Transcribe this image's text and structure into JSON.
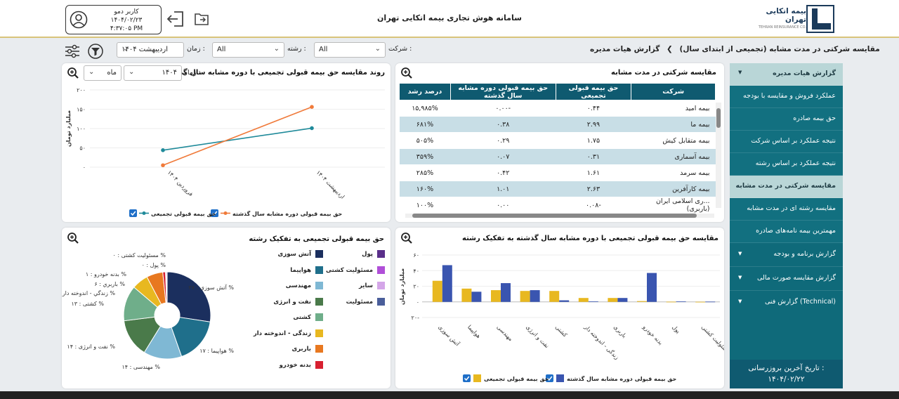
{
  "header": {
    "title": "سامانه هوش تجاری بیمه اتکایی تهران",
    "logo_name": "بیمه اتکایی تهران",
    "logo_sub": "TEHRAN REINSURANCE CO.",
    "user_name": "کاربر دمو",
    "user_date": "۱۴۰۴/۰۲/۲۳",
    "user_time": "۴:۳۷:۰۵ PM"
  },
  "filters": {
    "breadcrumb_root": "گزارش هیات مدیره",
    "breadcrumb_current": "مقایسه شرکتی در مدت مشابه (تجمیعی از ابتدای سال)",
    "company_label": "شرکت :",
    "company_value": "All",
    "field_label": "رشته :",
    "field_value": "All",
    "time_label": "زمان :",
    "month_value": "اردیبهشت",
    "year_value": "۱۴۰۴"
  },
  "sidebar": {
    "items": [
      {
        "label": "گزارش هیات مدیره"
      },
      {
        "label": "عملکرد فروش و مقایسه با بودجه"
      },
      {
        "label": "حق بیمه صادره"
      },
      {
        "label": "نتیجه عملکرد بر اساس شرکت"
      },
      {
        "label": "نتیجه عملکرد بر اساس رشته"
      },
      {
        "label": "مقایسه شرکتی در مدت مشابه"
      },
      {
        "label": "مقایسه رشته ای در مدت مشابه"
      },
      {
        "label": "مهمترین بیمه نامه‌های صادره"
      },
      {
        "label": "گزارش برنامه و بودجه"
      },
      {
        "label": "گزارش مقایسه صورت مالی"
      },
      {
        "label": "گزارش فنی (Technical)"
      }
    ],
    "update_label": "تاریخ آخرین بروزرسانی :",
    "update_date": "۱۴۰۴/۰۲/۲۲"
  },
  "table_card": {
    "title": "مقایسه شرکتی در مدت مشابه",
    "columns": [
      "شرکت",
      "حق بیمه قبولی تجمیعی",
      "حق بیمه قبولی دوره مشابه سال گذشته",
      "درصد رشد"
    ],
    "rows": [
      [
        "بیمه امید",
        "۰.۴۴",
        "-۰.۰۰",
        "۱۵,۹۸۵%"
      ],
      [
        "بیمه ما",
        "۲.۹۹",
        "۰.۳۸",
        "۶۸۱%"
      ],
      [
        "بیمه متقابل کیش",
        "۱.۷۵",
        "۰.۲۹",
        "۵۰۵%"
      ],
      [
        "بیمه آسماری",
        "۰.۳۱",
        "۰.۰۷",
        "۳۵۹%"
      ],
      [
        "بیمه سرمد",
        "۱.۶۱",
        "۰.۴۲",
        "۲۸۵%"
      ],
      [
        "بیمه کارآفرین",
        "۲.۶۳",
        "۱.۰۱",
        "۱۶۰%"
      ],
      [
        "...ری اسلامی ایران (باربری)",
        "-۰.۰۸",
        "۰.۰۰",
        "۱۰۰%"
      ]
    ]
  },
  "line_card": {
    "title": "روند مقایسه حق بیمه قبولی تجمیعی با دوره مشابه سال گذشته",
    "time_label": "زمان :",
    "year_value": "۱۴۰۴",
    "period_value": "ماه"
  },
  "pie_card": {
    "title": "حق بیمه قبولی تجمیعی به تفکیک رشته",
    "legend": [
      {
        "label": "آتش سوزی",
        "color": "#1b2f5e"
      },
      {
        "label": "پول",
        "color": "#5a2f8a"
      },
      {
        "label": "هواپیما",
        "color": "#1f6f8b"
      },
      {
        "label": "مسئولیت کشتی",
        "color": "#b04fd8"
      },
      {
        "label": "مهندسی",
        "color": "#7fb8d4"
      },
      {
        "label": "سایر",
        "color": "#d4a6e8"
      },
      {
        "label": "نفت و انرژی",
        "color": "#4a7a4a"
      },
      {
        "label": "مسئولیت",
        "color": "#4a5e9a"
      },
      {
        "label": "کشتی",
        "color": "#6fae8a"
      },
      {
        "label": "زندگی - اندوخته دار",
        "color": "#e8b820"
      },
      {
        "label": "باربری",
        "color": "#e87820"
      },
      {
        "label": "بدنه خودرو",
        "color": "#d82030"
      }
    ],
    "labels": [
      "آتش سوزی : ۲۷ %",
      "هواپیما : ۱۷ %",
      "مهندسی : ۱۴ %",
      "نفت و انرژی : ۱۴ %",
      "کشتی : ۱۳ %",
      "زندگي - اندوخته دار : ۶ %",
      "باربري : ۶ %",
      "بدنه خودرو : ۱ %",
      "پول : ۰ %",
      "مسئولیت کشتی : ۰ %"
    ]
  },
  "bar_card": {
    "title": "مقایسه حق بیمه قبولی تجمیعی با دوره مشابه سال گذشته به تفکیک رشته"
  },
  "chart_data": [
    {
      "type": "line",
      "title": "روند مقایسه حق بیمه قبولی تجمیعی با دوره مشابه سال گذشته",
      "ylabel": "میلیارد تومان",
      "categories": [
        "فروردین ۱۴۰۴",
        "اردیبهشت ۱۴۰۴"
      ],
      "yticks": [
        "۰",
        "۵۰",
        "۱۰۰",
        "۱۵۰",
        "۲۰۰"
      ],
      "ylim": [
        0,
        200
      ],
      "series": [
        {
          "name": "حق بیمه قبولی تجمیعی",
          "color": "#1f8a9a",
          "values": [
            44,
            101
          ]
        },
        {
          "name": "حق بیمه قبولی دوره مشابه سال گذشته",
          "color": "#f07a3a",
          "values": [
            5,
            156
          ]
        }
      ]
    },
    {
      "type": "pie",
      "title": "حق بیمه قبولی تجمیعی به تفکیک رشته",
      "slices": [
        {
          "name": "آتش سوزی",
          "value": 27,
          "color": "#1b2f5e"
        },
        {
          "name": "هواپیما",
          "value": 17,
          "color": "#1f6f8b"
        },
        {
          "name": "مهندسی",
          "value": 14,
          "color": "#7fb8d4"
        },
        {
          "name": "نفت و انرژی",
          "value": 14,
          "color": "#4a7a4a"
        },
        {
          "name": "کشتی",
          "value": 13,
          "color": "#6fae8a"
        },
        {
          "name": "زندگی - اندوخته دار",
          "value": 6,
          "color": "#e8b820"
        },
        {
          "name": "باربری",
          "value": 6,
          "color": "#e87820"
        },
        {
          "name": "بدنه خودرو",
          "value": 1,
          "color": "#d82030"
        },
        {
          "name": "پول",
          "value": 0.3,
          "color": "#5a2f8a"
        },
        {
          "name": "مسئولیت کشتی",
          "value": 0.3,
          "color": "#b04fd8"
        }
      ]
    },
    {
      "type": "bar",
      "title": "مقایسه حق بیمه قبولی تجمیعی با دوره مشابه سال گذشته به تفکیک رشته",
      "ylabel": "میلیارد تومان",
      "ylim": [
        -20,
        60
      ],
      "yticks": [
        "۲۰-",
        "۰",
        "۲۰",
        "۴۰",
        "۶۰"
      ],
      "categories": [
        "آتش سوزی",
        "هواپیما",
        "مهندسی",
        "نفت و انرژی",
        "کشتی",
        "زندگی - اندوخته دار",
        "باربری",
        "بدنه خودرو",
        "پول",
        "مسئولیت کشتی"
      ],
      "series": [
        {
          "name": "حق بیمه قبولی تجمیعی",
          "color": "#e8b820",
          "values": [
            27,
            17,
            15,
            14,
            14,
            5,
            5,
            1,
            0.2,
            0.1
          ]
        },
        {
          "name": "حق بیمه قبولی دوره مشابه سال گذشته",
          "color": "#3a55b0",
          "values": [
            47,
            13,
            24,
            15,
            2,
            0.5,
            5,
            37,
            0.5,
            0.3
          ]
        }
      ]
    }
  ]
}
